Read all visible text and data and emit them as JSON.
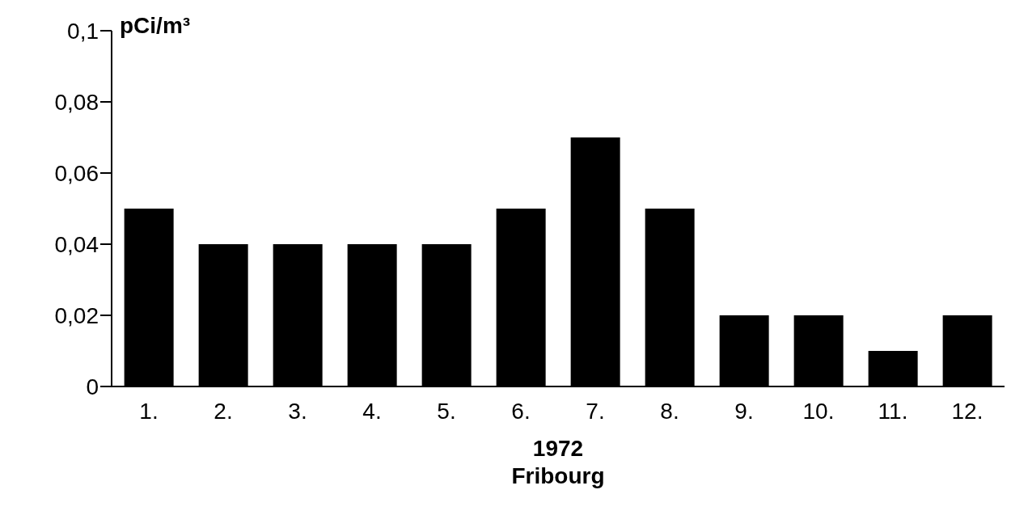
{
  "chart_data": {
    "type": "bar",
    "ylabel": "pCi/m³",
    "xlabel": "1972",
    "annotations": [
      "Fribourg"
    ],
    "categories": [
      "1.",
      "2.",
      "3.",
      "4.",
      "5.",
      "6.",
      "7.",
      "8.",
      "9.",
      "10.",
      "11.",
      "12."
    ],
    "values": [
      0.05,
      0.04,
      0.04,
      0.04,
      0.04,
      0.05,
      0.07,
      0.05,
      0.02,
      0.02,
      0.01,
      0.02
    ],
    "color": "#000000",
    "ylim": [
      0,
      0.1
    ],
    "yticks": [
      0,
      {
        "value": 0.02,
        "label": "0,02"
      },
      {
        "value": 0.04,
        "label": "0,04"
      },
      {
        "value": 0.06,
        "label": "0,06"
      },
      {
        "value": 0.08,
        "label": "0,08"
      },
      {
        "value": 0.1,
        "label": "0,1"
      }
    ],
    "grid": false,
    "legend": false
  }
}
